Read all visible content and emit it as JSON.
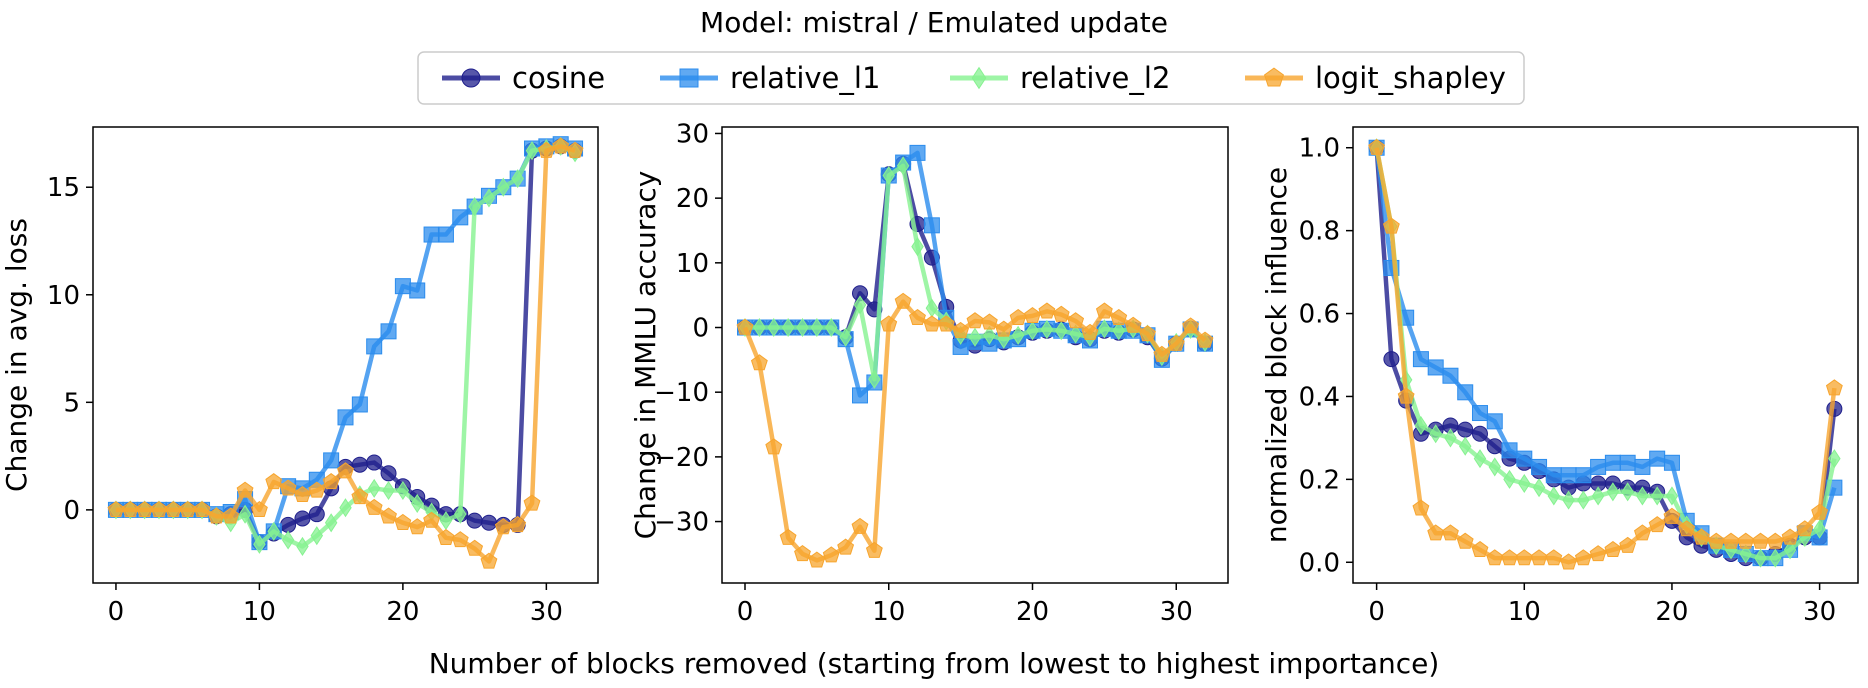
{
  "title": "Model: mistral / Emulated update",
  "xlabel": "Number of blocks removed (starting from lowest to highest importance)",
  "legend": [
    {
      "name": "cosine",
      "color": "#1f1f8c",
      "marker": "circle"
    },
    {
      "name": "relative_l1",
      "color": "#2b8ced",
      "marker": "square"
    },
    {
      "name": "relative_l2",
      "color": "#86f290",
      "marker": "diamond"
    },
    {
      "name": "logit_shapley",
      "color": "#f7a52e",
      "marker": "pentagon"
    }
  ],
  "chart_data": [
    {
      "type": "line",
      "ylabel": "Change in avg. loss",
      "xlim": [
        -1.6,
        33.6
      ],
      "ylim": [
        -3.4,
        17.8
      ],
      "xticks": [
        0,
        10,
        20,
        30
      ],
      "yticks": [
        0,
        5,
        10,
        15
      ],
      "grid": false,
      "series": [
        {
          "name": "cosine",
          "x": [
            0,
            1,
            2,
            3,
            4,
            5,
            6,
            7,
            8,
            9,
            10,
            11,
            12,
            13,
            14,
            15,
            16,
            17,
            18,
            19,
            20,
            21,
            22,
            23,
            24,
            25,
            26,
            27,
            28,
            29,
            30,
            31,
            32
          ],
          "values": [
            0,
            0,
            0,
            0,
            0,
            0,
            0,
            -0.3,
            -0.2,
            0,
            -1.5,
            -1.1,
            -0.7,
            -0.4,
            -0.2,
            1.0,
            2.0,
            2.1,
            2.2,
            1.7,
            1.1,
            0.6,
            0.2,
            -0.2,
            -0.2,
            -0.5,
            -0.6,
            -0.7,
            -0.7,
            16.7,
            16.8,
            16.9,
            16.7
          ]
        },
        {
          "name": "relative_l1",
          "x": [
            0,
            1,
            2,
            3,
            4,
            5,
            6,
            7,
            8,
            9,
            10,
            11,
            12,
            13,
            14,
            15,
            16,
            17,
            18,
            19,
            20,
            21,
            22,
            23,
            24,
            25,
            26,
            27,
            28,
            29,
            30,
            31,
            32
          ],
          "values": [
            0,
            0,
            0,
            0,
            0,
            0,
            0,
            -0.2,
            -0.1,
            0.5,
            -1.5,
            -1.0,
            1.1,
            1.0,
            1.4,
            2.3,
            4.3,
            4.9,
            7.6,
            8.3,
            10.4,
            10.2,
            12.8,
            12.8,
            13.6,
            14.1,
            14.6,
            15.0,
            15.4,
            16.8,
            16.9,
            17.0,
            16.8
          ]
        },
        {
          "name": "relative_l2",
          "x": [
            0,
            1,
            2,
            3,
            4,
            5,
            6,
            7,
            8,
            9,
            10,
            11,
            12,
            13,
            14,
            15,
            16,
            17,
            18,
            19,
            20,
            21,
            22,
            23,
            24,
            25,
            26,
            27,
            28,
            29,
            30,
            31,
            32
          ],
          "values": [
            0,
            0,
            0,
            0,
            0,
            0,
            0,
            -0.3,
            -0.6,
            -0.2,
            -1.6,
            -1.0,
            -1.4,
            -1.7,
            -1.2,
            -0.6,
            0.1,
            0.7,
            1.0,
            0.9,
            0.9,
            0.3,
            -0.1,
            -0.5,
            -0.2,
            14.1,
            14.5,
            15.0,
            15.4,
            16.7,
            16.8,
            16.9,
            16.6
          ]
        },
        {
          "name": "logit_shapley",
          "x": [
            0,
            1,
            2,
            3,
            4,
            5,
            6,
            7,
            8,
            9,
            10,
            11,
            12,
            13,
            14,
            15,
            16,
            17,
            18,
            19,
            20,
            21,
            22,
            23,
            24,
            25,
            26,
            27,
            28,
            29,
            30,
            31,
            32
          ],
          "values": [
            0,
            0,
            0,
            0,
            0,
            0,
            0,
            -0.3,
            -0.3,
            0.9,
            0.0,
            1.3,
            1.0,
            0.7,
            0.9,
            1.3,
            1.8,
            0.6,
            0.1,
            -0.3,
            -0.6,
            -0.8,
            -0.5,
            -1.3,
            -1.4,
            -1.8,
            -2.4,
            -0.8,
            -0.7,
            0.3,
            16.7,
            16.9,
            16.7
          ]
        }
      ]
    },
    {
      "type": "line",
      "ylabel": "Change in MMLU accuracy",
      "xlim": [
        -1.6,
        33.6
      ],
      "ylim": [
        -39.5,
        31
      ],
      "xticks": [
        0,
        10,
        20,
        30
      ],
      "yticks": [
        -30,
        -20,
        -10,
        0,
        10,
        20,
        30
      ],
      "grid": false,
      "series": [
        {
          "name": "cosine",
          "x": [
            0,
            1,
            2,
            3,
            4,
            5,
            6,
            7,
            8,
            9,
            10,
            11,
            12,
            13,
            14,
            15,
            16,
            17,
            18,
            19,
            20,
            21,
            22,
            23,
            24,
            25,
            26,
            27,
            28,
            29,
            30,
            31,
            32
          ],
          "values": [
            0,
            0,
            0,
            0,
            0,
            0,
            0,
            -1.5,
            5.3,
            2.8,
            23.7,
            25.3,
            16.0,
            10.8,
            3.2,
            -2.0,
            -2.8,
            -1.8,
            -2.3,
            -1.5,
            -0.8,
            -0.5,
            -0.3,
            -1.5,
            -1.8,
            -0.5,
            -0.8,
            -0.3,
            -1.5,
            -4.8,
            -2.5,
            -0.2,
            -2.5
          ]
        },
        {
          "name": "relative_l1",
          "x": [
            0,
            1,
            2,
            3,
            4,
            5,
            6,
            7,
            8,
            9,
            10,
            11,
            12,
            13,
            14,
            15,
            16,
            17,
            18,
            19,
            20,
            21,
            22,
            23,
            24,
            25,
            26,
            27,
            28,
            29,
            30,
            31,
            32
          ],
          "values": [
            0,
            0,
            0,
            0,
            0,
            0,
            0,
            -1.8,
            -10.5,
            -8.5,
            23.5,
            25.5,
            27.0,
            15.8,
            1.5,
            -3.0,
            -2.2,
            -2.5,
            -2.0,
            -1.8,
            -0.5,
            -0.2,
            -0.5,
            -1.2,
            -2.0,
            -0.2,
            -0.5,
            -0.5,
            -1.2,
            -5.0,
            -2.5,
            -0.3,
            -2.5
          ]
        },
        {
          "name": "relative_l2",
          "x": [
            0,
            1,
            2,
            3,
            4,
            5,
            6,
            7,
            8,
            9,
            10,
            11,
            12,
            13,
            14,
            15,
            16,
            17,
            18,
            19,
            20,
            21,
            22,
            23,
            24,
            25,
            26,
            27,
            28,
            29,
            30,
            31,
            32
          ],
          "values": [
            0,
            0,
            0,
            0,
            0,
            0,
            0,
            -1.5,
            3.5,
            -8.0,
            23.5,
            25.0,
            12.5,
            3.0,
            1.0,
            -1.2,
            -1.5,
            -1.2,
            -1.8,
            -1.2,
            -0.5,
            -0.3,
            -0.5,
            -1.0,
            -1.5,
            -0.2,
            -0.5,
            -0.2,
            -1.0,
            -4.5,
            -2.3,
            -0.3,
            -2.3
          ]
        },
        {
          "name": "logit_shapley",
          "x": [
            0,
            1,
            2,
            3,
            4,
            5,
            6,
            7,
            8,
            9,
            10,
            11,
            12,
            13,
            14,
            15,
            16,
            17,
            18,
            19,
            20,
            21,
            22,
            23,
            24,
            25,
            26,
            27,
            28,
            29,
            30,
            31,
            32
          ],
          "values": [
            0,
            -5.5,
            -18.5,
            -32.5,
            -35.0,
            -36.0,
            -35.2,
            -34.0,
            -30.8,
            -34.5,
            0.5,
            4.0,
            1.5,
            0.5,
            0.5,
            -0.5,
            1.0,
            0.8,
            -0.3,
            1.5,
            1.8,
            2.5,
            2.0,
            1.0,
            -0.8,
            2.5,
            1.5,
            0.3,
            -1.0,
            -4.2,
            -2.5,
            0.2,
            -2.0
          ]
        }
      ]
    },
    {
      "type": "line",
      "ylabel": "normalized block influence",
      "xlim": [
        -1.6,
        32.6
      ],
      "ylim": [
        -0.05,
        1.05
      ],
      "xticks": [
        0,
        10,
        20,
        30
      ],
      "yticks": [
        0.0,
        0.2,
        0.4,
        0.6,
        0.8,
        1.0
      ],
      "grid": false,
      "series": [
        {
          "name": "cosine",
          "x": [
            0,
            1,
            2,
            3,
            4,
            5,
            6,
            7,
            8,
            9,
            10,
            11,
            12,
            13,
            14,
            15,
            16,
            17,
            18,
            19,
            20,
            21,
            22,
            23,
            24,
            25,
            26,
            27,
            28,
            29,
            30,
            31
          ],
          "values": [
            1.0,
            0.49,
            0.39,
            0.31,
            0.32,
            0.33,
            0.32,
            0.31,
            0.28,
            0.25,
            0.24,
            0.22,
            0.2,
            0.18,
            0.19,
            0.19,
            0.19,
            0.18,
            0.18,
            0.17,
            0.1,
            0.06,
            0.04,
            0.03,
            0.02,
            0.01,
            0.01,
            0.02,
            0.04,
            0.06,
            0.06,
            0.37
          ]
        },
        {
          "name": "relative_l1",
          "x": [
            0,
            1,
            2,
            3,
            4,
            5,
            6,
            7,
            8,
            9,
            10,
            11,
            12,
            13,
            14,
            15,
            16,
            17,
            18,
            19,
            20,
            21,
            22,
            23,
            24,
            25,
            26,
            27,
            28,
            29,
            30,
            31
          ],
          "values": [
            1.0,
            0.71,
            0.59,
            0.49,
            0.47,
            0.45,
            0.41,
            0.36,
            0.34,
            0.27,
            0.25,
            0.23,
            0.21,
            0.21,
            0.21,
            0.23,
            0.24,
            0.24,
            0.23,
            0.25,
            0.24,
            0.1,
            0.07,
            0.04,
            0.03,
            0.02,
            0.01,
            0.01,
            0.03,
            0.07,
            0.06,
            0.18
          ]
        },
        {
          "name": "relative_l2",
          "x": [
            0,
            1,
            2,
            3,
            4,
            5,
            6,
            7,
            8,
            9,
            10,
            11,
            12,
            13,
            14,
            15,
            16,
            17,
            18,
            19,
            20,
            21,
            22,
            23,
            24,
            25,
            26,
            27,
            28,
            29,
            30,
            31
          ],
          "values": [
            1.0,
            0.81,
            0.44,
            0.33,
            0.31,
            0.3,
            0.28,
            0.25,
            0.23,
            0.2,
            0.19,
            0.18,
            0.16,
            0.15,
            0.15,
            0.16,
            0.17,
            0.17,
            0.16,
            0.16,
            0.16,
            0.09,
            0.06,
            0.04,
            0.03,
            0.02,
            0.01,
            0.01,
            0.03,
            0.06,
            0.08,
            0.25
          ]
        },
        {
          "name": "logit_shapley",
          "x": [
            0,
            1,
            2,
            3,
            4,
            5,
            6,
            7,
            8,
            9,
            10,
            11,
            12,
            13,
            14,
            15,
            16,
            17,
            18,
            19,
            20,
            21,
            22,
            23,
            24,
            25,
            26,
            27,
            28,
            29,
            30,
            31
          ],
          "values": [
            1.0,
            0.81,
            0.4,
            0.13,
            0.07,
            0.07,
            0.05,
            0.03,
            0.01,
            0.01,
            0.01,
            0.01,
            0.01,
            0.0,
            0.01,
            0.02,
            0.03,
            0.04,
            0.07,
            0.09,
            0.11,
            0.08,
            0.06,
            0.05,
            0.05,
            0.05,
            0.05,
            0.05,
            0.06,
            0.08,
            0.12,
            0.42
          ]
        }
      ]
    }
  ]
}
